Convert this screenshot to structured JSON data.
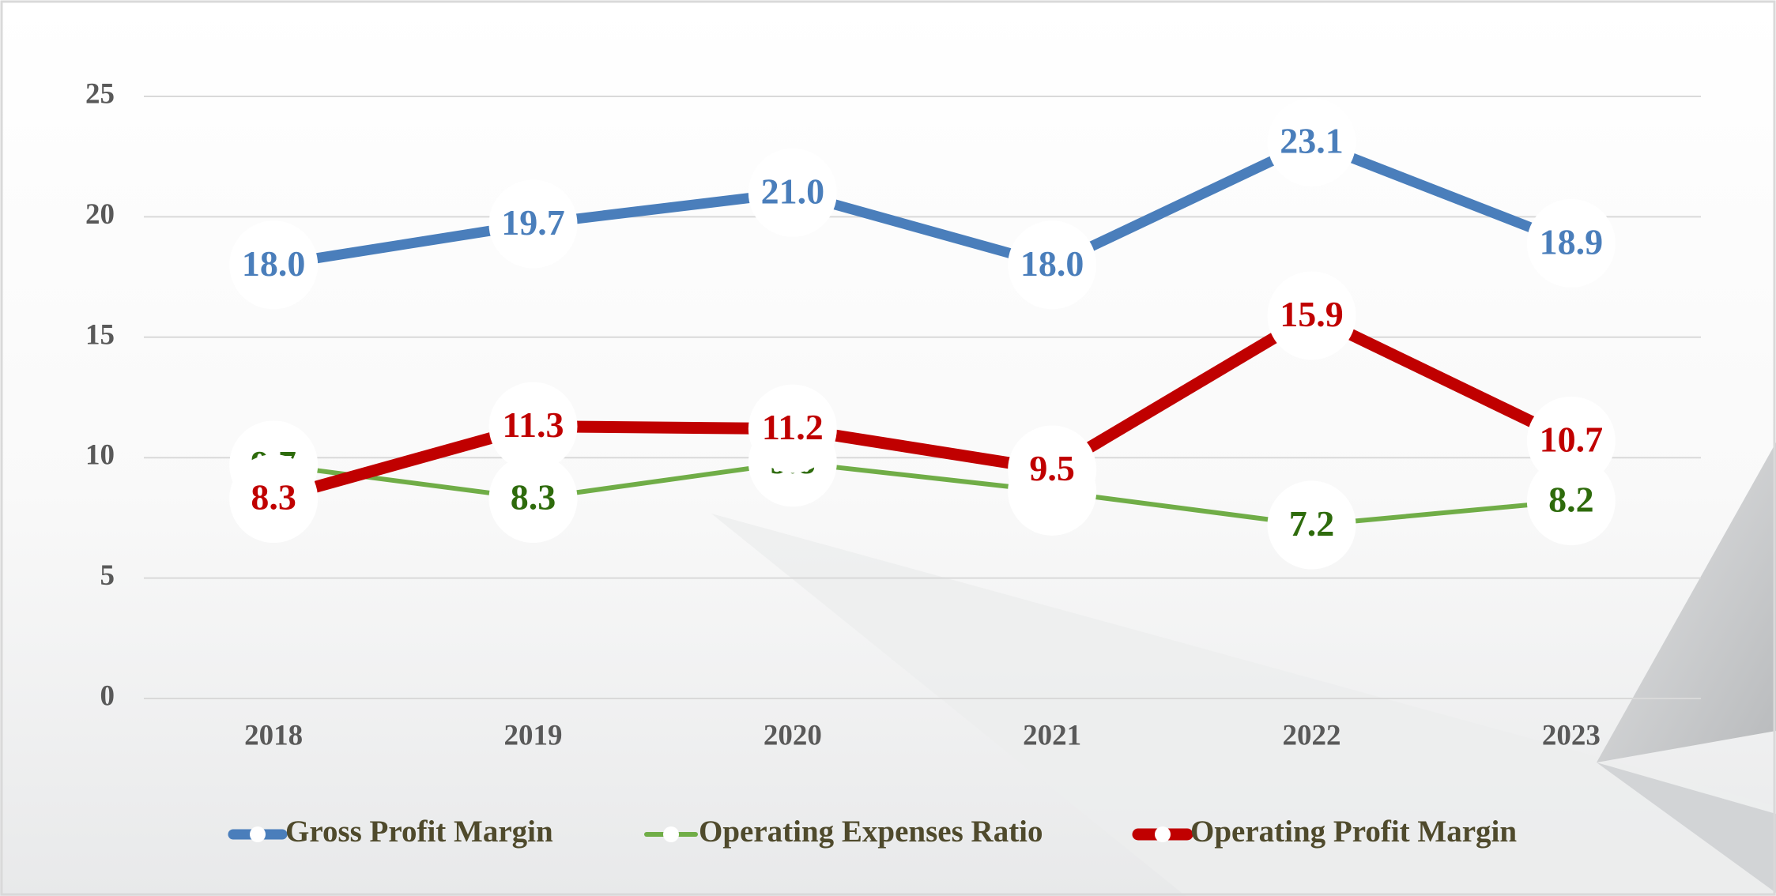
{
  "chart_data": {
    "type": "line",
    "categories": [
      "2018",
      "2019",
      "2020",
      "2021",
      "2022",
      "2023"
    ],
    "series": [
      {
        "name": "Gross Profit Margin",
        "color": "#4a7ebb",
        "label_color": "#4a7ebb",
        "values": [
          18.0,
          19.7,
          21.0,
          18.0,
          23.1,
          18.9
        ],
        "value_labels": [
          "18.0",
          "19.7",
          "21.0",
          "18.0",
          "23.1",
          "18.9"
        ]
      },
      {
        "name": "Operating Expenses Ratio",
        "color": "#70ad47",
        "label_color": "#2e6b0c",
        "values": [
          9.7,
          8.3,
          9.8,
          8.6,
          7.2,
          8.2
        ]
      },
      {
        "name": "Operating Profit Margin",
        "color": "#c00000",
        "label_color": "#c00000",
        "values": [
          8.3,
          11.3,
          11.2,
          9.5,
          15.9,
          10.7
        ]
      }
    ],
    "ylim": [
      0,
      25
    ],
    "yticks": [
      0,
      5,
      10,
      15,
      20,
      25
    ],
    "grid": true,
    "legend": "bottom"
  }
}
